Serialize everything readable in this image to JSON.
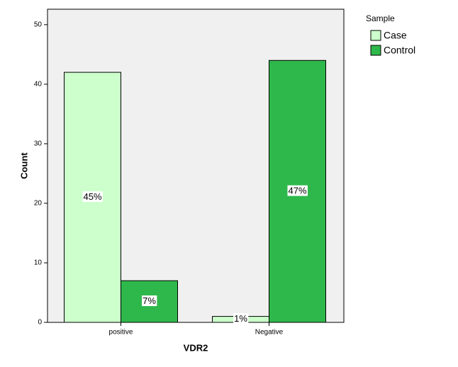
{
  "chart_data": {
    "type": "bar",
    "x_label": "VDR2",
    "y_label": "Count",
    "categories": [
      "positive",
      "Negative"
    ],
    "legend_title": "Sample",
    "series": [
      {
        "name": "Case",
        "color": "#ccffcc",
        "values": [
          42,
          1
        ],
        "percent_labels": [
          "45%",
          "1%"
        ]
      },
      {
        "name": "Control",
        "color": "#2eb84b",
        "values": [
          7,
          44
        ],
        "percent_labels": [
          "7%",
          "47%"
        ]
      }
    ],
    "ylim": [
      0,
      52.6
    ],
    "yticks": [
      0,
      10,
      20,
      30,
      40,
      50
    ]
  }
}
